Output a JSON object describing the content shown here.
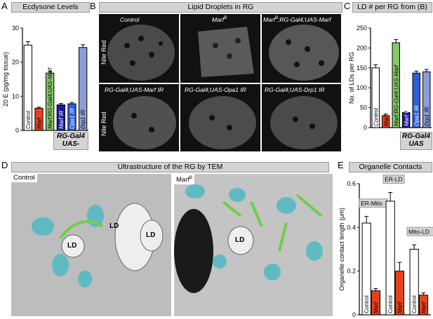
{
  "panels": {
    "A": {
      "letter": "A",
      "title": "Ecdysone Levels"
    },
    "B": {
      "letter": "B",
      "title": "Lipid Droplets in RG"
    },
    "C": {
      "letter": "C",
      "title": "LD # per RG from (B)"
    },
    "D": {
      "letter": "D",
      "title": "Ultrastructure of the RG by TEM"
    },
    "E": {
      "letter": "E",
      "title": "Organelle Contacts"
    }
  },
  "panelA": {
    "rg_box": [
      "RG-Gal4",
      "UAS-"
    ],
    "chart_data": {
      "type": "bar",
      "categories": [
        "Control",
        "Marf^B",
        "Marf^B;RG-Gal4;UAS-Marf",
        "Marf IR",
        "Opa1 IR",
        "Drp1 IR"
      ],
      "display_labels": [
        "Control",
        "Marf",
        "Marf;RG-Gal4;UAS-Marf",
        "Marf IR",
        "Opa1 IR",
        "Drp1 IR"
      ],
      "values": [
        25.0,
        6.5,
        16.8,
        7.5,
        7.8,
        24.3
      ],
      "errors": [
        1.0,
        0.3,
        0.5,
        0.4,
        0.4,
        0.8
      ],
      "colors": [
        "#ffffff",
        "#e8401f",
        "#86c96a",
        "#1a1a9a",
        "#2e5fd9",
        "#8c9ed9"
      ],
      "ylabel": "20 E (pg/mg tissue)",
      "ylim": [
        0,
        30
      ],
      "yticks": [
        0,
        10,
        20,
        30
      ]
    }
  },
  "panelB": {
    "images": [
      {
        "label": "Control"
      },
      {
        "label": "Marf",
        "sup": "B"
      },
      {
        "label": "Marf",
        "sup": "B",
        "label_rest": ";RG-Gal4;UAS-Marf"
      },
      {
        "label": "RG-Gal4;UAS-Marf IR"
      },
      {
        "label": "RG-Gal4;UAS-Opa1 IR"
      },
      {
        "label": "RG-Gal4;UAS-Drp1 IR"
      }
    ],
    "row_label": "Nile Red"
  },
  "panelC": {
    "rg_box": [
      "RG-Gal4",
      "UAS"
    ],
    "chart_data": {
      "type": "bar",
      "categories": [
        "Control",
        "Marf^B",
        "Marf^B;RG-Gal4;UAS-Marf",
        "Marf IR",
        "Opa1 IR",
        "Drp1 IR"
      ],
      "display_labels": [
        "Control",
        "Marf",
        "Marf;RG-Gal4;UAS-Marf",
        "Marf IR",
        "Opa1 IR",
        "Drp1 IR"
      ],
      "values": [
        150,
        30,
        213,
        38,
        137,
        140
      ],
      "errors": [
        8,
        4,
        8,
        3,
        5,
        6
      ],
      "colors": [
        "#ffffff",
        "#e8401f",
        "#86c96a",
        "#1a1a9a",
        "#2e5fd9",
        "#8c9ed9"
      ],
      "ylabel": "No. of LDs per RG",
      "ylim": [
        0,
        250
      ],
      "yticks": [
        0,
        50,
        100,
        150,
        200,
        250
      ]
    }
  },
  "panelD": {
    "left_label": "Control",
    "right_label": "Marf",
    "right_sup": "B",
    "ld_labels": [
      "LD",
      "LD",
      "LD",
      "LD"
    ]
  },
  "panelE": {
    "chart_data": {
      "type": "bar",
      "groups": [
        "ER-Mito",
        "ER-LD",
        "Mito-LD"
      ],
      "categories": [
        "Control",
        "Marf^B"
      ],
      "display_labels": [
        "Control",
        "Marf"
      ],
      "values": [
        [
          0.42,
          0.11
        ],
        [
          0.52,
          0.2
        ],
        [
          0.3,
          0.09
        ]
      ],
      "errors": [
        [
          0.03,
          0.01
        ],
        [
          0.04,
          0.04
        ],
        [
          0.02,
          0.01
        ]
      ],
      "colors": [
        "#ffffff",
        "#e8401f"
      ],
      "ylabel": "Organelle contact length (μm)",
      "ylim": [
        0,
        0.6
      ],
      "yticks": [
        0.0,
        0.2,
        0.4,
        0.6
      ],
      "ytick_labels": [
        "0",
        "0.2",
        "0.4",
        "0.6"
      ]
    }
  }
}
